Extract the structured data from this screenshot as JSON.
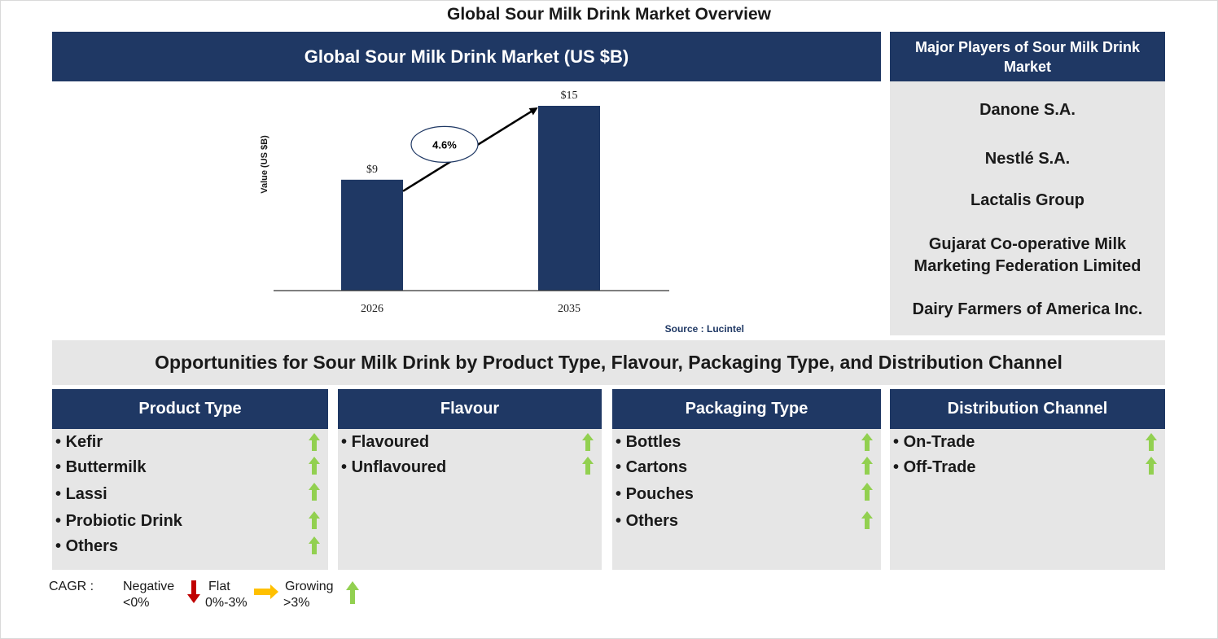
{
  "page_title": "Global Sour Milk Drink Market Overview",
  "chart_header": "Global Sour Milk Drink Market (US $B)",
  "chart_data": {
    "type": "bar",
    "categories": [
      "2026",
      "2035"
    ],
    "values": [
      9,
      15
    ],
    "data_labels": [
      "$9",
      "$15"
    ],
    "ylabel": "Value (US $B)",
    "xlabel": "",
    "ylim": [
      0,
      15
    ],
    "cagr_label": "4.6%",
    "source": "Source : Lucintel",
    "bar_color": "#1f3864"
  },
  "players": {
    "title": "Major Players of Sour Milk Drink Market",
    "items": [
      "Danone S.A.",
      "Nestlé S.A.",
      "Lactalis Group",
      "Gujarat Co-operative Milk Marketing Federation Limited",
      "Dairy Farmers of America Inc."
    ]
  },
  "opportunities_title": "Opportunities for Sour Milk Drink by Product Type, Flavour, Packaging Type, and Distribution Channel",
  "segments": [
    {
      "title": "Product Type",
      "items": [
        "Kefir",
        "Buttermilk",
        "Lassi",
        "Probiotic Drink",
        "Others"
      ]
    },
    {
      "title": "Flavour",
      "items": [
        "Flavoured",
        "Unflavoured"
      ]
    },
    {
      "title": "Packaging Type",
      "items": [
        "Bottles",
        "Cartons",
        "Pouches",
        "Others"
      ]
    },
    {
      "title": "Distribution Channel",
      "items": [
        "On-Trade",
        "Off-Trade"
      ]
    }
  ],
  "segment_trend_icon": "green-up-arrow-icon",
  "legend": {
    "cagr_label": "CAGR :",
    "negative": {
      "label": "Negative",
      "range": "<0%",
      "icon": "red-down-arrow-icon",
      "color": "#c00000"
    },
    "flat": {
      "label": "Flat",
      "range": "0%-3%",
      "icon": "orange-right-arrow-icon",
      "color": "#ffc000"
    },
    "growing": {
      "label": "Growing",
      "range": ">3%",
      "icon": "green-up-arrow-icon",
      "color": "#92d050"
    }
  },
  "colors": {
    "navy": "#1f3864",
    "panel_grey": "#e6e6e6",
    "growth_green": "#92d050"
  }
}
